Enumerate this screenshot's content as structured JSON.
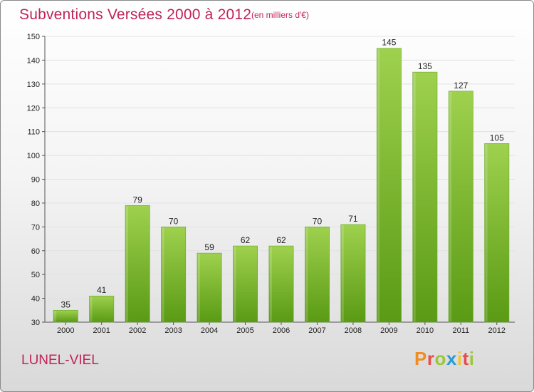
{
  "header": {
    "title": "Subventions Versées 2000 à 2012",
    "subtitle": "(en milliers d'€)"
  },
  "footer": {
    "town": "LUNEL-VIEL",
    "logo_letters": [
      "P",
      "r",
      "o",
      "x",
      "i",
      "t",
      "i"
    ],
    "logo_colors": [
      "#f28c1e",
      "#e84d4d",
      "#9bc73a",
      "#2a9ad6",
      "#f2c42e",
      "#e84d4d",
      "#9bc73a"
    ]
  },
  "colors": {
    "bar_top": "#9ed14e",
    "bar_bottom": "#5a9a14",
    "accent": "#c0235a"
  },
  "chart_data": {
    "type": "bar",
    "title": "Subventions Versées 2000 à 2012",
    "subtitle": "(en milliers d'€)",
    "categories": [
      "2000",
      "2001",
      "2002",
      "2003",
      "2004",
      "2005",
      "2006",
      "2007",
      "2008",
      "2009",
      "2010",
      "2011",
      "2012"
    ],
    "values": [
      35,
      41,
      79,
      70,
      59,
      62,
      62,
      70,
      71,
      145,
      135,
      127,
      105
    ],
    "ylim": [
      30,
      150
    ],
    "yticks": [
      30,
      40,
      50,
      60,
      70,
      80,
      90,
      100,
      110,
      120,
      130,
      140,
      150
    ],
    "grid": true,
    "data_labels": true
  }
}
